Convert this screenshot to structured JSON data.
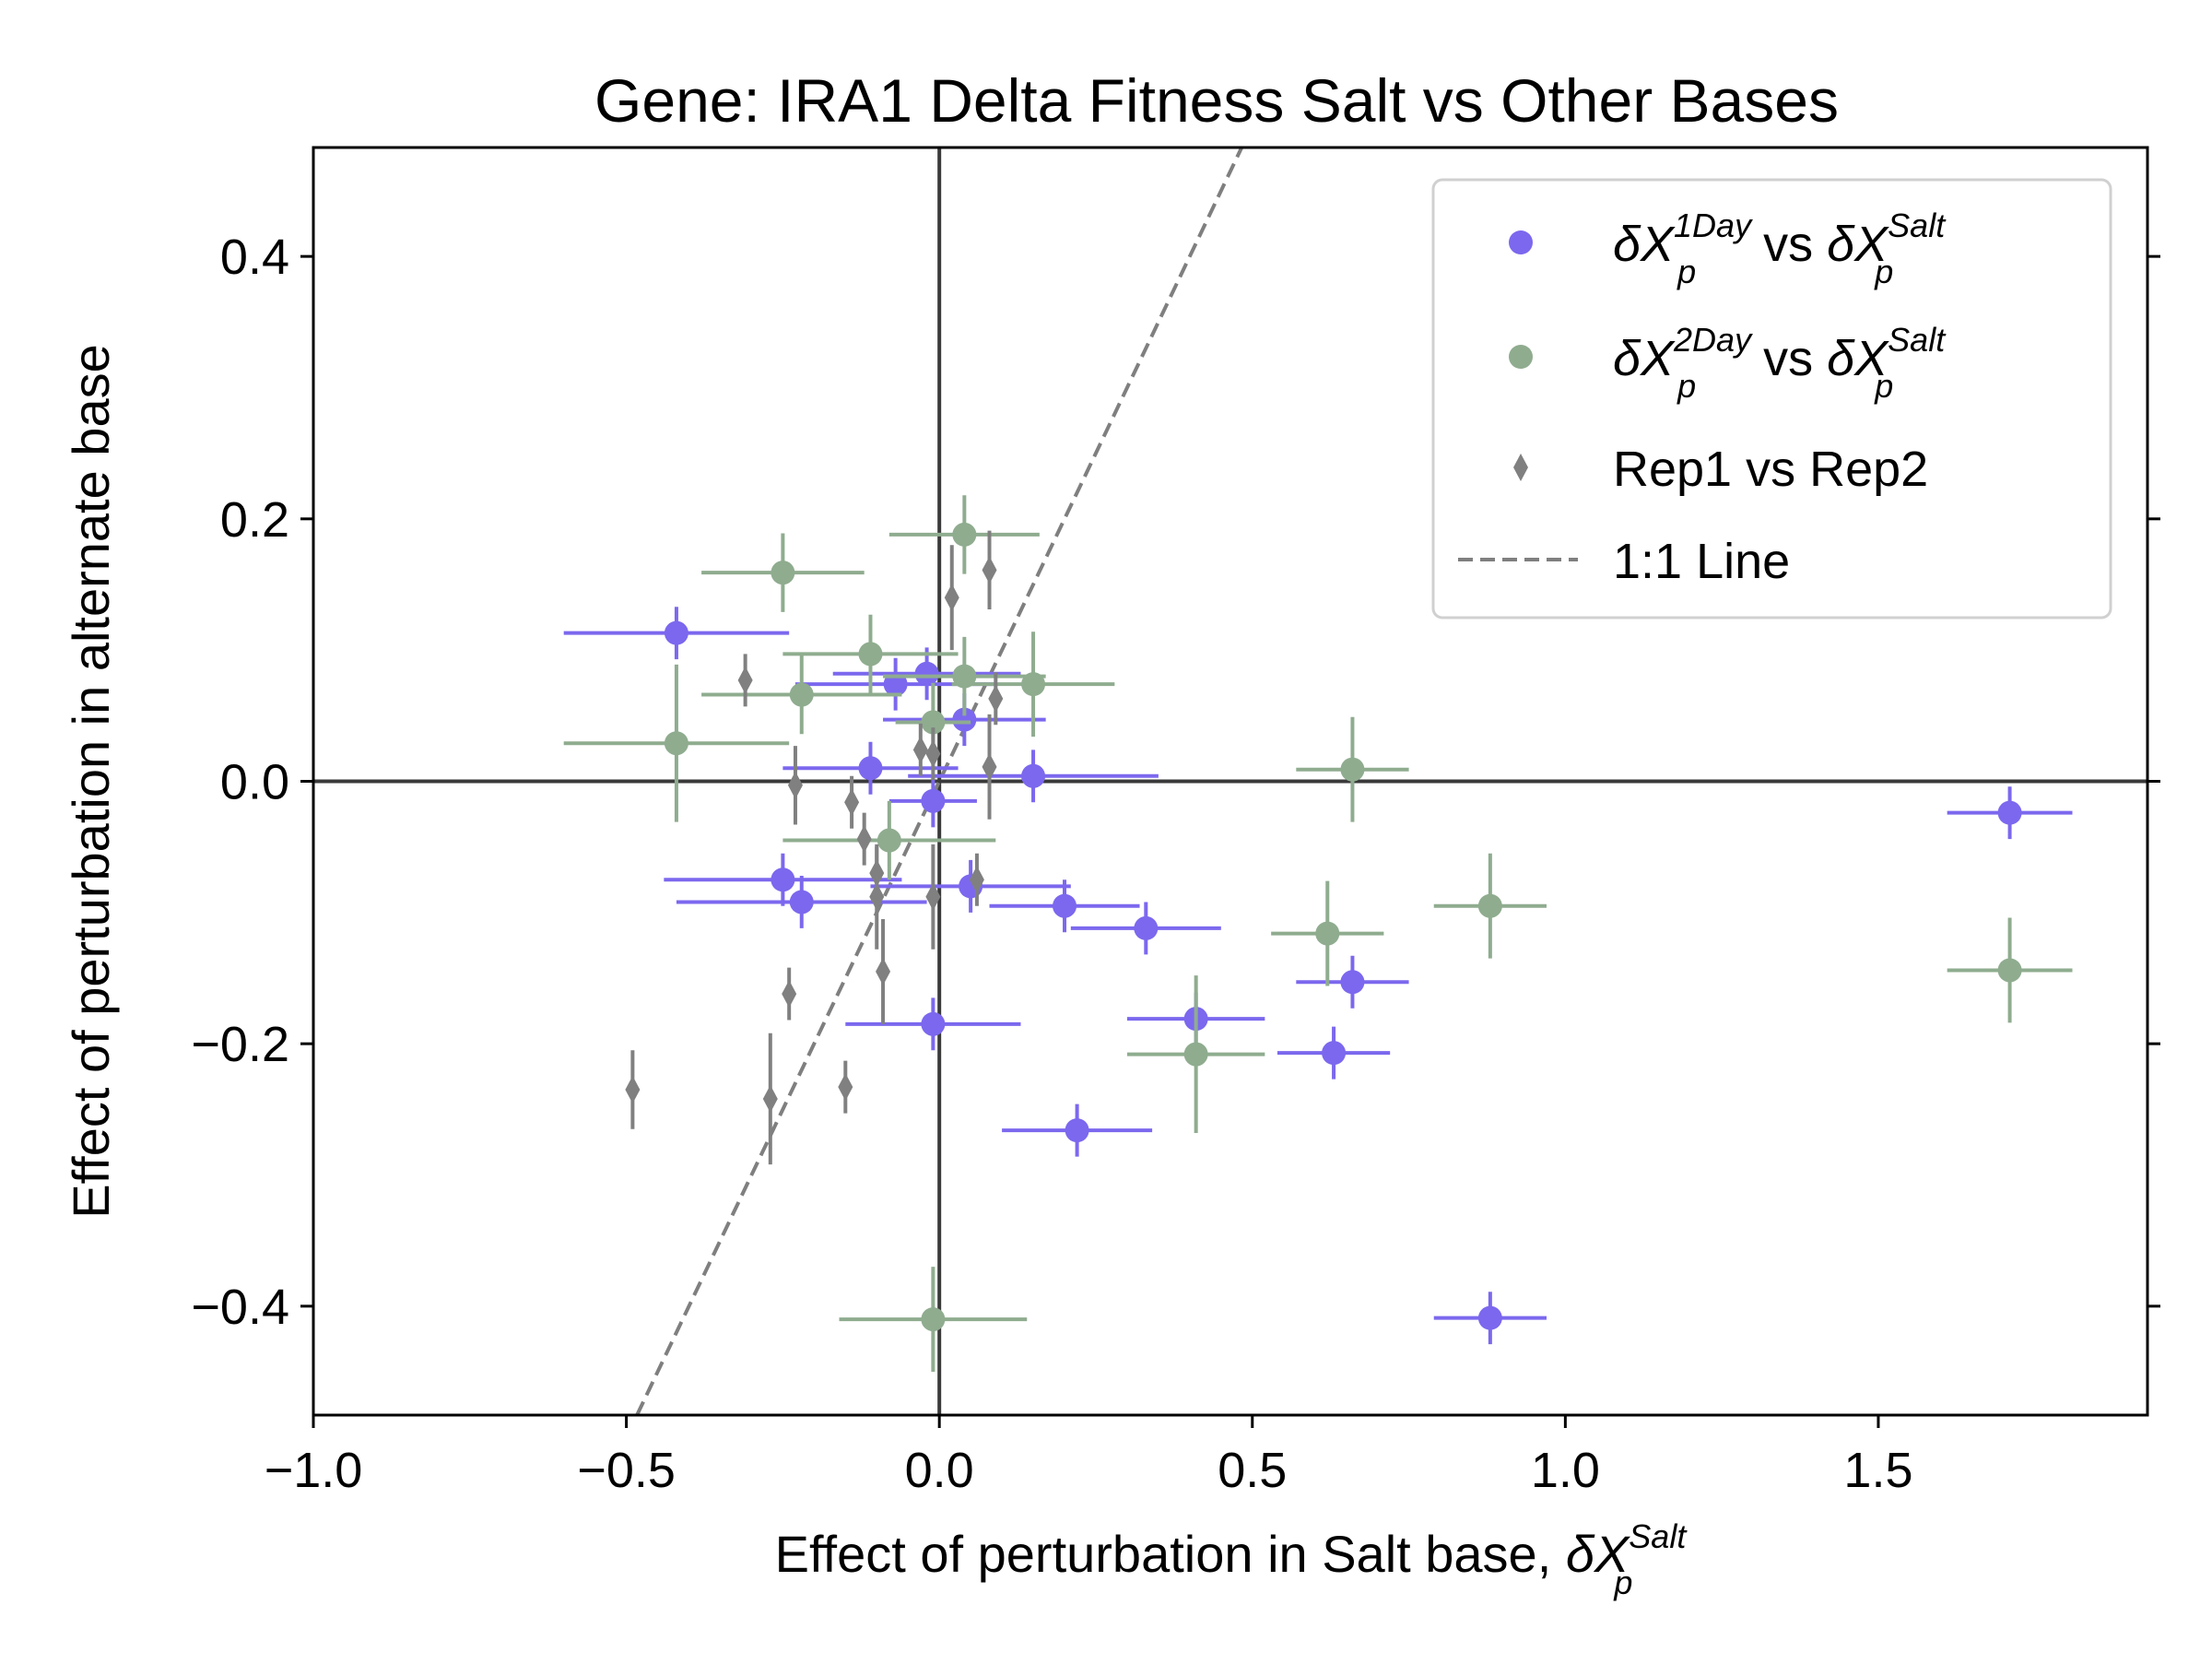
{
  "chart_data": {
    "type": "scatter",
    "title": "Gene: IRA1 Delta Fitness Salt vs Other Bases",
    "xlabel": {
      "text": "Effect of perturbation in Salt base, ",
      "symbol": "δX",
      "sup": "Salt",
      "sub": "p"
    },
    "ylabel": "Effect of perturbation in alternate base",
    "xlim": [
      -1.0,
      1.93
    ],
    "ylim": [
      -0.483,
      0.483
    ],
    "xticks": [
      -1.0,
      -0.5,
      0.0,
      0.5,
      1.0,
      1.5
    ],
    "xtick_labels": [
      "−1.0",
      "−0.5",
      "0.0",
      "0.5",
      "1.0",
      "1.5"
    ],
    "yticks": [
      -0.4,
      -0.2,
      0.0,
      0.2,
      0.4
    ],
    "ytick_labels": [
      "−0.4",
      "−0.2",
      "0.0",
      "0.2",
      "0.4"
    ],
    "grid": false,
    "legend_position": "top-right",
    "reference_line": {
      "label": "1:1 Line",
      "slope": 1,
      "intercept": 0,
      "color": "#7f7f7f",
      "style": "dashed"
    },
    "zero_lines": true,
    "series": [
      {
        "name": "δX_p^1Day vs δX_p^Salt",
        "legend": {
          "symbol": "δX",
          "sup": "1Day",
          "sub": "p",
          "mid": " vs ",
          "symbol2": "δX",
          "sup2": "Salt",
          "sub2": "p"
        },
        "color": "#7b68ee",
        "marker": "circle",
        "points": [
          {
            "x": -0.42,
            "y": 0.113,
            "xerr": 0.18,
            "yerr": 0.02
          },
          {
            "x": -0.02,
            "y": 0.082,
            "xerr": 0.15,
            "yerr": 0.02
          },
          {
            "x": -0.07,
            "y": 0.074,
            "xerr": 0.16,
            "yerr": 0.02
          },
          {
            "x": 0.04,
            "y": 0.047,
            "xerr": 0.13,
            "yerr": 0.02
          },
          {
            "x": -0.11,
            "y": 0.01,
            "xerr": 0.14,
            "yerr": 0.02
          },
          {
            "x": 0.15,
            "y": 0.004,
            "xerr": 0.2,
            "yerr": 0.02
          },
          {
            "x": -0.01,
            "y": -0.015,
            "xerr": 0.07,
            "yerr": 0.02
          },
          {
            "x": -0.25,
            "y": -0.075,
            "xerr": 0.19,
            "yerr": 0.02
          },
          {
            "x": -0.22,
            "y": -0.092,
            "xerr": 0.2,
            "yerr": 0.02
          },
          {
            "x": 0.05,
            "y": -0.08,
            "xerr": 0.16,
            "yerr": 0.02
          },
          {
            "x": 0.2,
            "y": -0.095,
            "xerr": 0.12,
            "yerr": 0.02
          },
          {
            "x": 0.33,
            "y": -0.112,
            "xerr": 0.12,
            "yerr": 0.02
          },
          {
            "x": 0.66,
            "y": -0.153,
            "xerr": 0.09,
            "yerr": 0.02
          },
          {
            "x": 0.41,
            "y": -0.181,
            "xerr": 0.11,
            "yerr": 0.02
          },
          {
            "x": -0.01,
            "y": -0.185,
            "xerr": 0.14,
            "yerr": 0.02
          },
          {
            "x": 0.63,
            "y": -0.207,
            "xerr": 0.09,
            "yerr": 0.02
          },
          {
            "x": 0.22,
            "y": -0.266,
            "xerr": 0.12,
            "yerr": 0.02
          },
          {
            "x": 0.88,
            "y": -0.409,
            "xerr": 0.09,
            "yerr": 0.02
          },
          {
            "x": 1.71,
            "y": -0.024,
            "xerr": 0.1,
            "yerr": 0.02
          }
        ]
      },
      {
        "name": "δX_p^2Day vs δX_p^Salt",
        "legend": {
          "symbol": "δX",
          "sup": "2Day",
          "sub": "p",
          "mid": " vs ",
          "symbol2": "δX",
          "sup2": "Salt",
          "sub2": "p"
        },
        "color": "#8fac8f",
        "marker": "circle",
        "points": [
          {
            "x": -0.25,
            "y": 0.159,
            "xerr": 0.13,
            "yerr": 0.03
          },
          {
            "x": 0.04,
            "y": 0.188,
            "xerr": 0.12,
            "yerr": 0.03
          },
          {
            "x": -0.11,
            "y": 0.097,
            "xerr": 0.14,
            "yerr": 0.03
          },
          {
            "x": 0.04,
            "y": 0.08,
            "xerr": 0.13,
            "yerr": 0.03
          },
          {
            "x": 0.15,
            "y": 0.074,
            "xerr": 0.13,
            "yerr": 0.04
          },
          {
            "x": -0.22,
            "y": 0.066,
            "xerr": 0.16,
            "yerr": 0.03
          },
          {
            "x": -0.01,
            "y": 0.045,
            "xerr": 0.06,
            "yerr": 0.03
          },
          {
            "x": -0.42,
            "y": 0.029,
            "xerr": 0.18,
            "yerr": 0.06
          },
          {
            "x": 0.66,
            "y": 0.009,
            "xerr": 0.09,
            "yerr": 0.04
          },
          {
            "x": -0.08,
            "y": -0.045,
            "xerr": 0.17,
            "yerr": 0.03
          },
          {
            "x": 0.62,
            "y": -0.116,
            "xerr": 0.09,
            "yerr": 0.04
          },
          {
            "x": 0.88,
            "y": -0.095,
            "xerr": 0.09,
            "yerr": 0.04
          },
          {
            "x": 0.41,
            "y": -0.208,
            "xerr": 0.11,
            "yerr": 0.06
          },
          {
            "x": -0.01,
            "y": -0.41,
            "xerr": 0.15,
            "yerr": 0.04
          },
          {
            "x": 1.71,
            "y": -0.144,
            "xerr": 0.1,
            "yerr": 0.04
          }
        ]
      },
      {
        "name": "Rep1 vs Rep2",
        "color": "#808080",
        "marker": "diamond",
        "points": [
          {
            "x": 0.08,
            "y": 0.161,
            "xerr": 0.01,
            "yerr": 0.03
          },
          {
            "x": 0.02,
            "y": 0.14,
            "xerr": 0.01,
            "yerr": 0.04
          },
          {
            "x": -0.31,
            "y": 0.077,
            "xerr": 0.01,
            "yerr": 0.02
          },
          {
            "x": 0.09,
            "y": 0.063,
            "xerr": 0.01,
            "yerr": 0.02
          },
          {
            "x": -0.03,
            "y": 0.024,
            "xerr": 0.01,
            "yerr": 0.02
          },
          {
            "x": -0.01,
            "y": 0.021,
            "xerr": 0.01,
            "yerr": 0.02
          },
          {
            "x": 0.08,
            "y": 0.011,
            "xerr": 0.01,
            "yerr": 0.04
          },
          {
            "x": -0.23,
            "y": -0.003,
            "xerr": 0.01,
            "yerr": 0.03
          },
          {
            "x": -0.14,
            "y": -0.016,
            "xerr": 0.01,
            "yerr": 0.02
          },
          {
            "x": -0.12,
            "y": -0.044,
            "xerr": 0.01,
            "yerr": 0.02
          },
          {
            "x": -0.1,
            "y": -0.07,
            "xerr": 0.01,
            "yerr": 0.02
          },
          {
            "x": 0.06,
            "y": -0.075,
            "xerr": 0.01,
            "yerr": 0.02
          },
          {
            "x": -0.1,
            "y": -0.088,
            "xerr": 0.01,
            "yerr": 0.04
          },
          {
            "x": -0.01,
            "y": -0.088,
            "xerr": 0.01,
            "yerr": 0.04
          },
          {
            "x": -0.09,
            "y": -0.145,
            "xerr": 0.01,
            "yerr": 0.04
          },
          {
            "x": -0.24,
            "y": -0.162,
            "xerr": 0.01,
            "yerr": 0.02
          },
          {
            "x": -0.15,
            "y": -0.233,
            "xerr": 0.01,
            "yerr": 0.02
          },
          {
            "x": -0.49,
            "y": -0.235,
            "xerr": 0.01,
            "yerr": 0.03
          },
          {
            "x": -0.27,
            "y": -0.242,
            "xerr": 0.01,
            "yerr": 0.05
          }
        ]
      }
    ]
  }
}
